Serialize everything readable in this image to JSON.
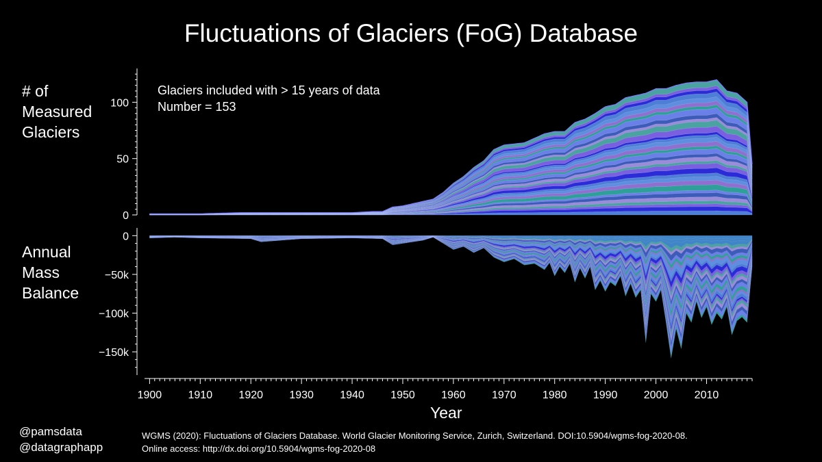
{
  "page": {
    "title": "Fluctuations of Glaciers (FoG) Database",
    "credits": "@pamsdata\n@datagraphapp",
    "source": "WGMS (2020): Fluctuations of Glaciers Database. World Glacier Monitoring Service, Zurich, Switzerland. DOI:10.5904/wgms-fog-2020-08.\nOnline access: http://dx.doi.org/10.5904/wgms-fog-2020-08"
  },
  "chart_data": [
    {
      "type": "area",
      "stacked": true,
      "ylabel": "# of\nMeasured\nGlaciers",
      "annotation": "Glaciers included with > 15 years of data\nNumber = 153",
      "xlim": [
        1899,
        2019
      ],
      "ylim": [
        0,
        130
      ],
      "ytick_labels": [
        "0",
        "50",
        "100"
      ],
      "ytick_values": [
        0,
        50,
        100
      ],
      "years": [
        1900,
        1910,
        1918,
        1920,
        1930,
        1940,
        1944,
        1946,
        1948,
        1950,
        1952,
        1954,
        1956,
        1958,
        1960,
        1962,
        1964,
        1966,
        1968,
        1970,
        1972,
        1974,
        1976,
        1978,
        1980,
        1982,
        1984,
        1986,
        1988,
        1990,
        1992,
        1994,
        1996,
        1998,
        2000,
        2002,
        2004,
        2006,
        2008,
        2010,
        2012,
        2014,
        2016,
        2018,
        2019
      ],
      "total_measured": [
        1,
        1,
        2,
        2,
        2,
        2,
        3,
        3,
        7,
        8,
        10,
        12,
        14,
        20,
        28,
        34,
        42,
        48,
        58,
        62,
        63,
        64,
        68,
        72,
        74,
        74,
        82,
        85,
        90,
        96,
        98,
        104,
        106,
        108,
        112,
        112,
        115,
        117,
        118,
        118,
        120,
        110,
        108,
        100,
        45
      ],
      "series_colors": [
        "#4d7fd6",
        "#2b2bd8",
        "#7a5fe0",
        "#4aa3a0",
        "#9a8cd8",
        "#3d5bb8",
        "#6a80e8",
        "#2f9f9a",
        "#8f6fd0",
        "#5d8ee0"
      ]
    },
    {
      "type": "area",
      "stacked": true,
      "ylabel": "Annual\nMass\nBalance",
      "xlabel": "Year",
      "xlim": [
        1899,
        2019
      ],
      "ylim": [
        -180000,
        10000
      ],
      "ytick_labels": [
        "0",
        "−50k",
        "−100k",
        "−150k"
      ],
      "ytick_values": [
        0,
        -50000,
        -100000,
        -150000
      ],
      "xtick_labels": [
        "1900",
        "1910",
        "1920",
        "1930",
        "1940",
        "1950",
        "1960",
        "1970",
        "1980",
        "1990",
        "2000",
        "2010"
      ],
      "xtick_values": [
        1900,
        1910,
        1920,
        1930,
        1940,
        1950,
        1960,
        1970,
        1980,
        1990,
        2000,
        2010
      ],
      "years": [
        1900,
        1905,
        1910,
        1920,
        1922,
        1930,
        1940,
        1946,
        1948,
        1950,
        1952,
        1954,
        1956,
        1958,
        1960,
        1962,
        1964,
        1966,
        1968,
        1970,
        1972,
        1974,
        1976,
        1978,
        1979,
        1980,
        1981,
        1982,
        1983,
        1984,
        1985,
        1986,
        1987,
        1988,
        1989,
        1990,
        1991,
        1992,
        1993,
        1994,
        1995,
        1996,
        1997,
        1998,
        1999,
        2000,
        2001,
        2002,
        2003,
        2004,
        2005,
        2006,
        2007,
        2008,
        2009,
        2010,
        2011,
        2012,
        2013,
        2014,
        2015,
        2016,
        2017,
        2018,
        2019
      ],
      "total_balance": [
        -3000,
        -2000,
        -3000,
        -4000,
        -8000,
        -4000,
        -3000,
        -4000,
        -12000,
        -10000,
        -8000,
        -6000,
        -2000,
        -10000,
        -18000,
        -14000,
        -22000,
        -16000,
        -28000,
        -34000,
        -30000,
        -38000,
        -36000,
        -44000,
        -35000,
        -52000,
        -40000,
        -48000,
        -36000,
        -60000,
        -42000,
        -55000,
        -40000,
        -70000,
        -58000,
        -72000,
        -60000,
        -65000,
        -52000,
        -78000,
        -62000,
        -80000,
        -70000,
        -138000,
        -75000,
        -85000,
        -70000,
        -112000,
        -158000,
        -120000,
        -146000,
        -100000,
        -112000,
        -85000,
        -106000,
        -92000,
        -115000,
        -100000,
        -108000,
        -92000,
        -128000,
        -110000,
        -105000,
        -112000,
        -40000
      ],
      "series_colors": [
        "#4d7fd6",
        "#2b2bd8",
        "#7a5fe0",
        "#4aa3a0",
        "#9a8cd8",
        "#3d5bb8",
        "#6a80e8",
        "#2f9f9a",
        "#8f6fd0",
        "#5d8ee0"
      ]
    }
  ]
}
